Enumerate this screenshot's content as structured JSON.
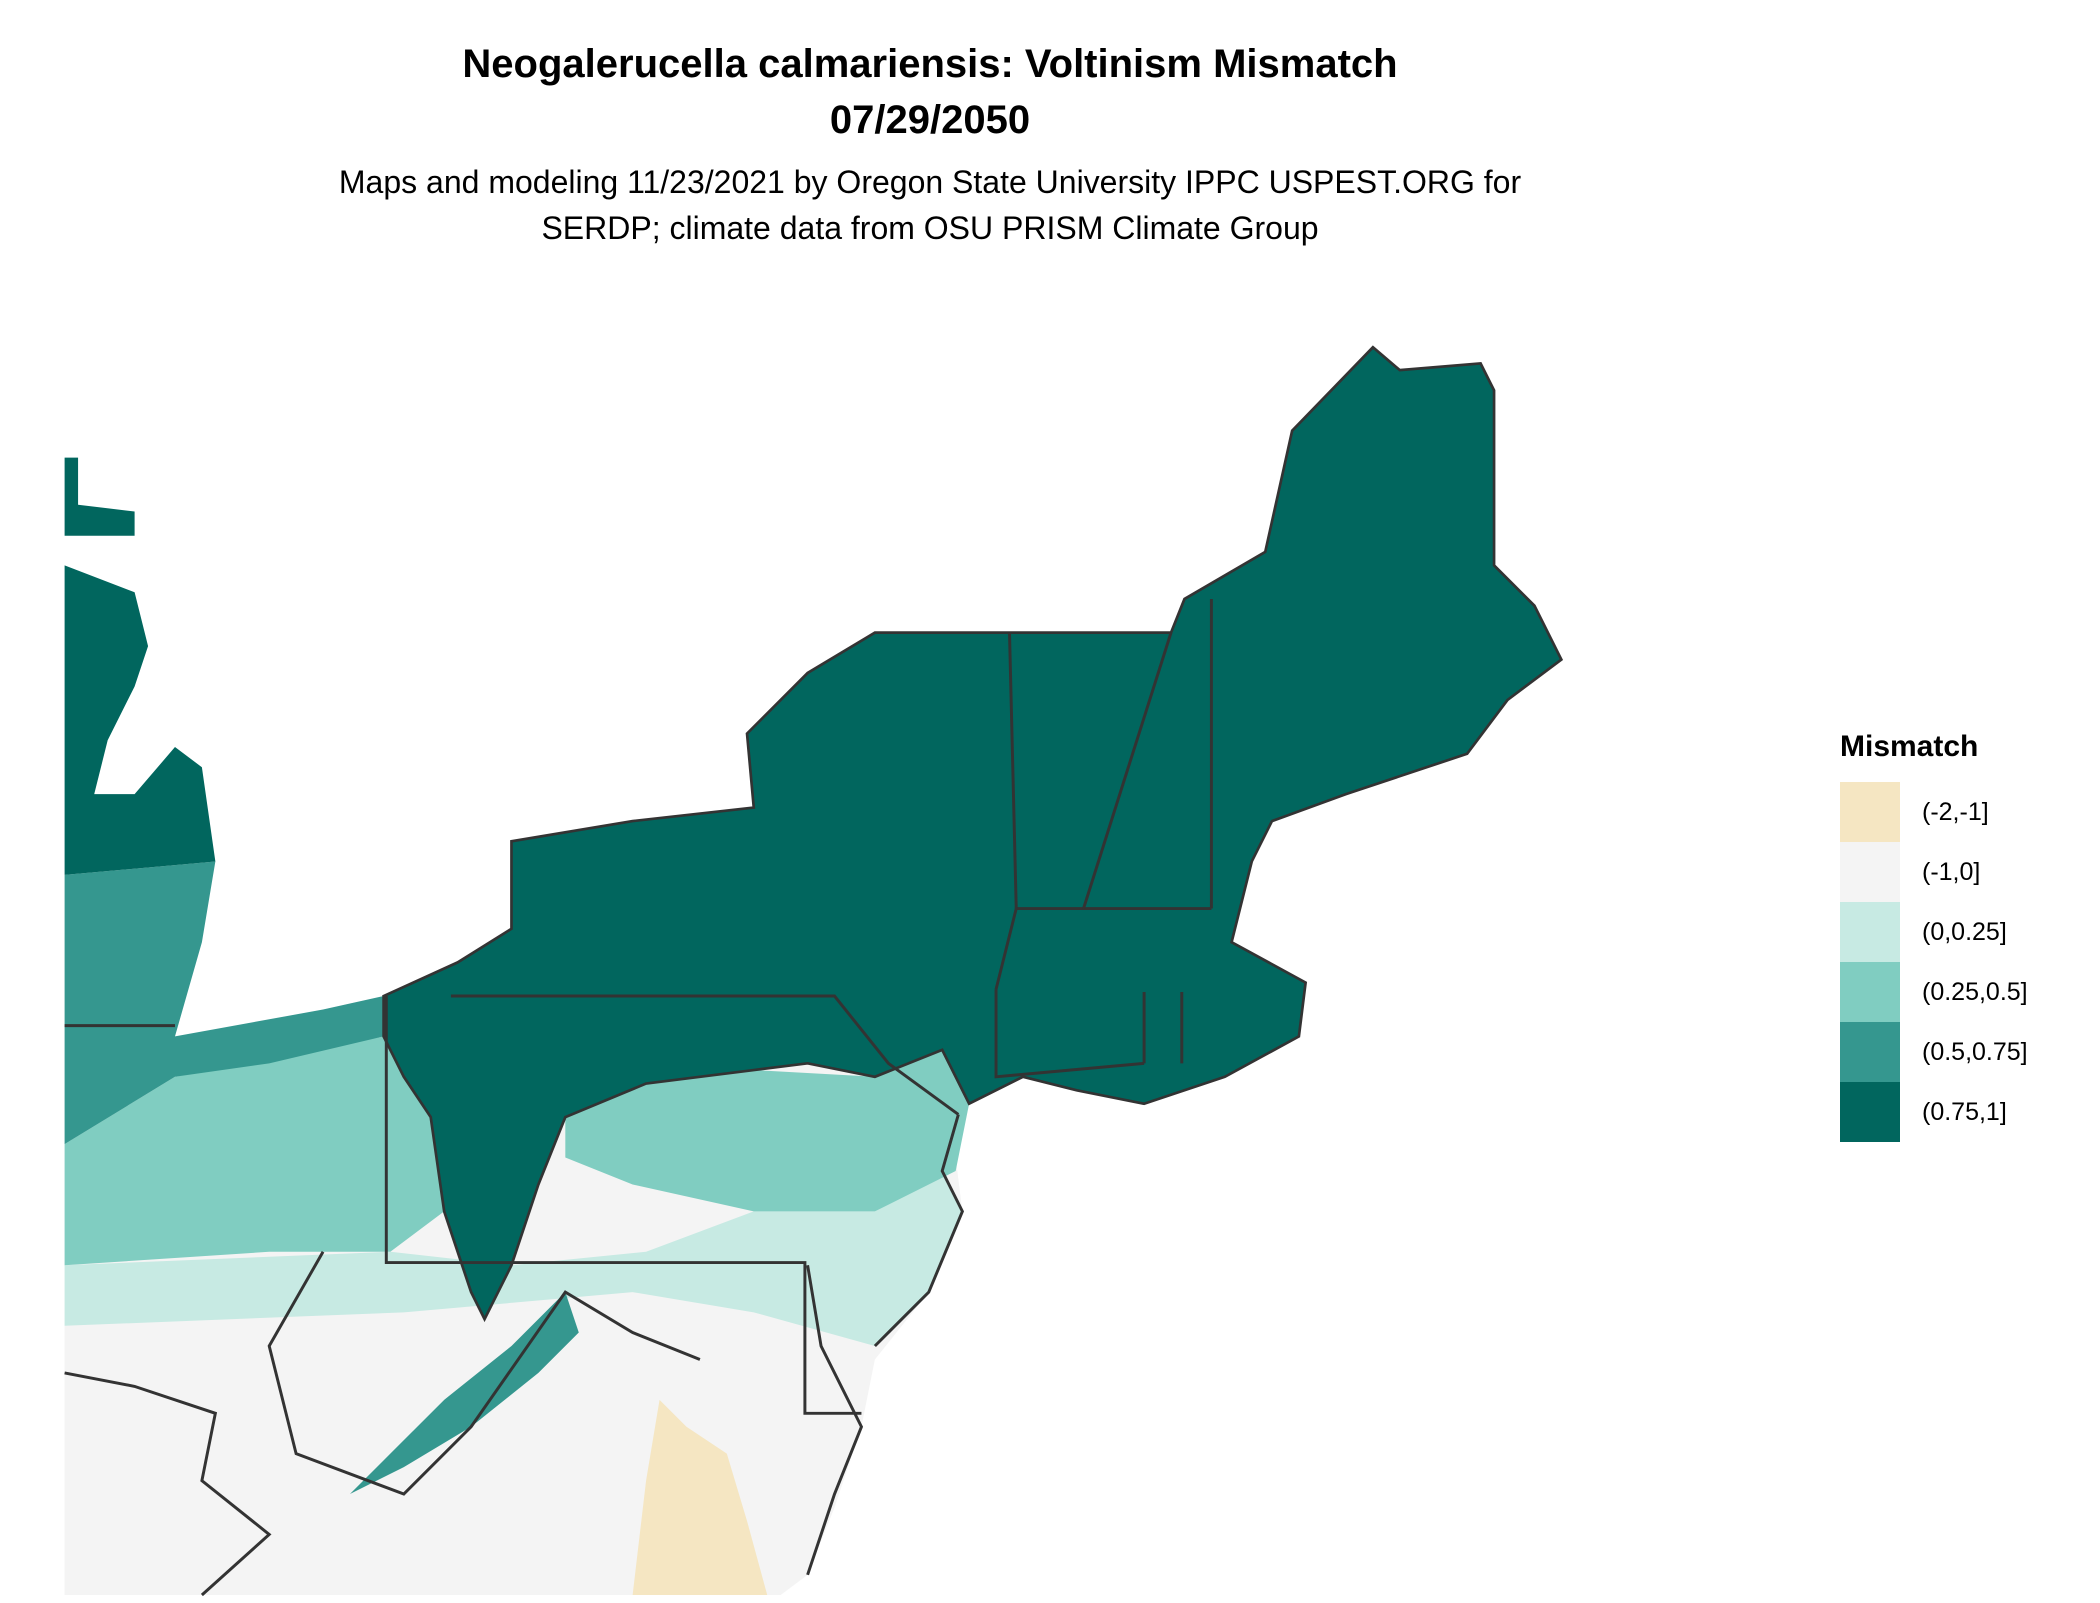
{
  "title": "Neogalerucella calmariensis: Voltinism Mismatch",
  "date": "07/29/2050",
  "subtitle_line1": "Maps and modeling 11/23/2021 by Oregon State University IPPC USPEST.ORG for",
  "subtitle_line2": "SERDP; climate data from OSU PRISM Climate Group",
  "legend": {
    "title": "Mismatch",
    "items": [
      {
        "label": "(-2,-1]",
        "color": "#f5e6c2"
      },
      {
        "label": "(-1,0]",
        "color": "#f4f4f4"
      },
      {
        "label": "(0,0.25]",
        "color": "#c7eae3"
      },
      {
        "label": "(0.25,0.5]",
        "color": "#80cdc1"
      },
      {
        "label": "(0.5,0.75]",
        "color": "#35978f"
      },
      {
        "label": "(0.75,1]",
        "color": "#01665e"
      }
    ]
  },
  "border_color": "#333333"
}
